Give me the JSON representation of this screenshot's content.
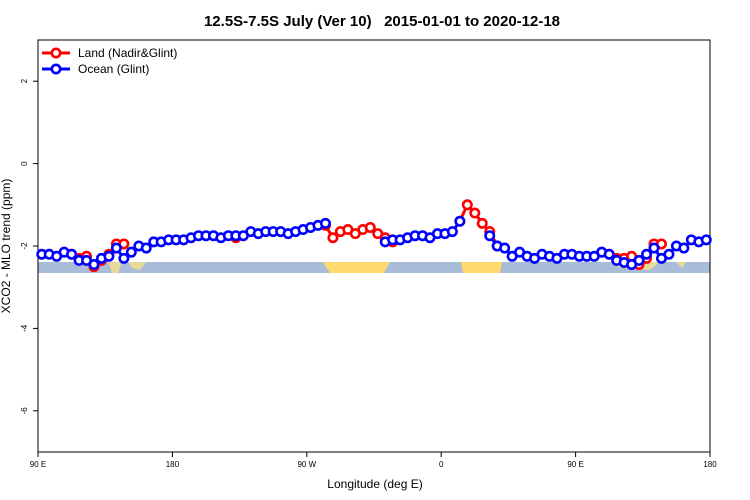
{
  "chart_data": {
    "type": "line",
    "title": "12.5S-7.5S July (Ver 10)   2015-01-01 to 2020-12-18",
    "xlabel": "Longitude (deg E)",
    "ylabel": "XCO2 - MLO trend (ppm)",
    "xlim": [
      90,
      540
    ],
    "ylim": [
      -7,
      3
    ],
    "xticks": [
      {
        "value": 90,
        "label": "90 E"
      },
      180,
      {
        "value": 270,
        "label": "90 W"
      },
      {
        "value": 360,
        "label": "0"
      },
      {
        "value": 450,
        "label": "90 E"
      },
      {
        "value": 540,
        "label": "180"
      }
    ],
    "yticks": [
      -6,
      -4,
      -2,
      0,
      2
    ],
    "legend": "top-left",
    "x": [
      92.5,
      97.5,
      102.5,
      107.5,
      112.5,
      117.5,
      122.5,
      127.5,
      132.5,
      137.5,
      142.5,
      147.5,
      152.5,
      157.5,
      162.5,
      167.5,
      172.5,
      177.5,
      182.5,
      187.5,
      192.5,
      197.5,
      202.5,
      207.5,
      212.5,
      217.5,
      222.5,
      227.5,
      232.5,
      237.5,
      242.5,
      247.5,
      252.5,
      257.5,
      262.5,
      267.5,
      272.5,
      277.5,
      282.5,
      287.5,
      292.5,
      297.5,
      302.5,
      307.5,
      312.5,
      317.5,
      322.5,
      327.5,
      332.5,
      337.5,
      342.5,
      347.5,
      352.5,
      357.5,
      362.5,
      367.5,
      372.5,
      377.5,
      382.5,
      387.5,
      392.5,
      397.5,
      402.5,
      407.5,
      412.5,
      417.5,
      422.5,
      427.5,
      432.5,
      437.5,
      442.5,
      447.5,
      452.5,
      457.5,
      462.5,
      467.5,
      472.5,
      477.5,
      482.5,
      487.5,
      492.5,
      497.5,
      502.5,
      507.5,
      512.5,
      517.5,
      522.5,
      527.5,
      532.5,
      537.5
    ],
    "series": [
      {
        "name": "Land (Nadir&Glint)",
        "color": "#ff0000",
        "values": [
          null,
          null,
          null,
          null,
          -2.2,
          -2.3,
          -2.25,
          -2.5,
          -2.35,
          -2.2,
          -1.95,
          -1.95,
          null,
          null,
          null,
          null,
          null,
          null,
          null,
          null,
          null,
          null,
          null,
          null,
          null,
          null,
          -1.8,
          null,
          null,
          null,
          null,
          null,
          null,
          null,
          null,
          null,
          null,
          null,
          -1.5,
          -1.8,
          -1.65,
          -1.6,
          -1.7,
          -1.6,
          -1.55,
          -1.7,
          -1.8,
          -1.9,
          null,
          null,
          null,
          null,
          null,
          null,
          null,
          null,
          -1.4,
          -1.0,
          -1.2,
          -1.45,
          -1.65,
          -2.0,
          null,
          null,
          null,
          null,
          null,
          null,
          null,
          null,
          null,
          null,
          null,
          null,
          null,
          null,
          -2.2,
          -2.3,
          -2.3,
          -2.25,
          -2.45,
          -2.3,
          -1.95,
          -1.95,
          null,
          null,
          null,
          null,
          null,
          null
        ]
      },
      {
        "name": "Ocean (Glint)",
        "color": "#0000ff",
        "values": [
          -2.2,
          -2.2,
          -2.25,
          -2.15,
          -2.2,
          -2.35,
          -2.35,
          -2.45,
          -2.3,
          -2.25,
          -2.05,
          -2.3,
          -2.15,
          -2.0,
          -2.05,
          -1.9,
          -1.9,
          -1.85,
          -1.85,
          -1.85,
          -1.8,
          -1.75,
          -1.75,
          -1.75,
          -1.8,
          -1.75,
          -1.75,
          -1.75,
          -1.65,
          -1.7,
          -1.65,
          -1.65,
          -1.65,
          -1.7,
          -1.65,
          -1.6,
          -1.55,
          -1.5,
          -1.45,
          null,
          null,
          null,
          null,
          null,
          null,
          null,
          -1.9,
          -1.85,
          -1.85,
          -1.8,
          -1.75,
          -1.75,
          -1.8,
          -1.7,
          -1.7,
          -1.65,
          -1.4,
          null,
          null,
          null,
          -1.75,
          -2.0,
          -2.05,
          -2.25,
          -2.15,
          -2.25,
          -2.3,
          -2.2,
          -2.25,
          -2.3,
          -2.2,
          -2.2,
          -2.25,
          -2.25,
          -2.25,
          -2.15,
          -2.2,
          -2.35,
          -2.4,
          -2.45,
          -2.35,
          -2.2,
          -2.05,
          -2.3,
          -2.2,
          -2.0,
          -2.05,
          -1.85,
          -1.9,
          -1.85
        ]
      }
    ]
  }
}
